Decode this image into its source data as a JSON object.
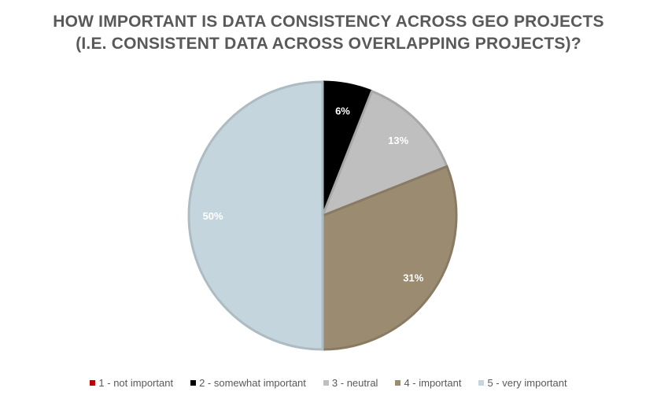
{
  "chart_data": {
    "type": "pie",
    "title_lines": [
      "HOW IMPORTANT IS DATA CONSISTENCY ACROSS GEO PROJECTS",
      "(I.E. CONSISTENT DATA ACROSS OVERLAPPING PROJECTS)?"
    ],
    "categories": [
      "1 - not important",
      "2 - somewhat important",
      "3 - neutral",
      "4 - important",
      "5 - very important"
    ],
    "values": [
      0,
      6,
      13,
      31,
      50
    ],
    "labels": [
      "",
      "6%",
      "13%",
      "31%",
      "50%"
    ],
    "colors": [
      "#c00000",
      "#000000",
      "#bfbfbf",
      "#9b8b70",
      "#c5d5dd"
    ],
    "label_colors": [
      "#ffffff",
      "#ffffff",
      "#ffffff",
      "#ffffff",
      "#ffffff"
    ],
    "legend_position": "bottom"
  }
}
